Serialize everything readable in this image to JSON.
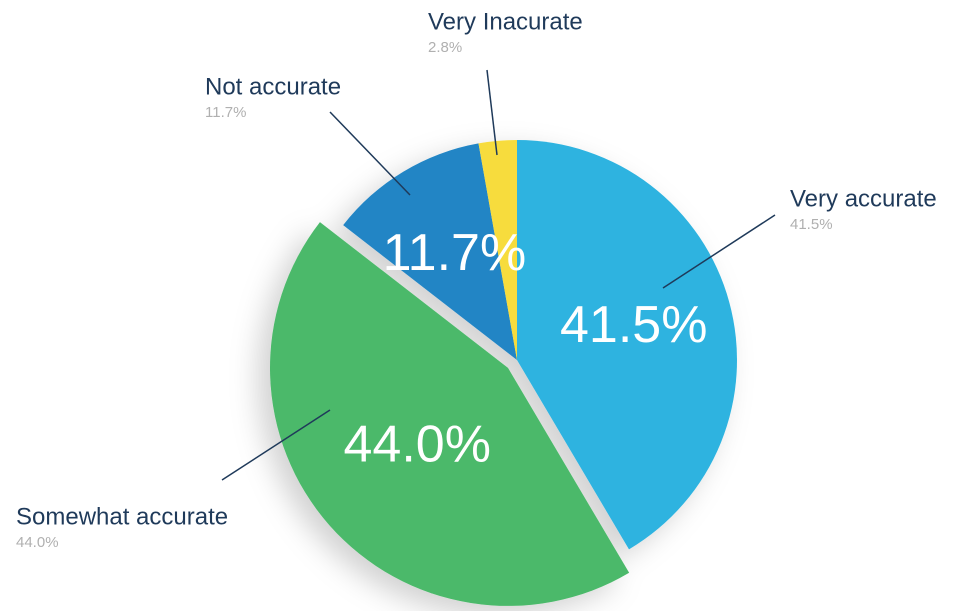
{
  "chart_data": {
    "type": "pie",
    "categories": [
      "Very accurate",
      "Somewhat accurate",
      "Not accurate",
      "Very Inacurate"
    ],
    "values": [
      41.5,
      44.0,
      11.7,
      2.8
    ],
    "value_labels": [
      "41.5%",
      "44.0%",
      "11.7%",
      "2.8%"
    ],
    "colors": [
      "#2db3e0",
      "#4cb96b",
      "#2185c5",
      "#f7dc3d"
    ]
  }
}
